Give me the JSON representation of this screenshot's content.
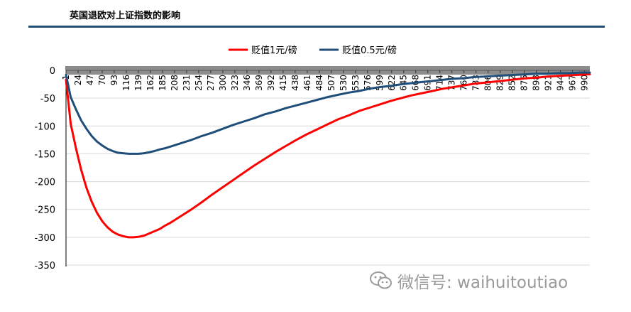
{
  "header": {
    "title": "英国退欧对上证指数的影响",
    "rule_color": "#1f4e79"
  },
  "watermark": {
    "text": "微信号: waihuitoutiao",
    "icon": "wechat-icon"
  },
  "chart_data": {
    "type": "line",
    "title": "",
    "xlabel": "",
    "ylabel": "",
    "ylim": [
      -350,
      0
    ],
    "yticks": [
      0,
      -50,
      -100,
      -150,
      -200,
      -250,
      -300,
      -350
    ],
    "xlim": [
      1,
      1000
    ],
    "xticks": [
      "1",
      "24",
      "47",
      "70",
      "93",
      "116",
      "139",
      "162",
      "185",
      "208",
      "231",
      "254",
      "277",
      "300",
      "323",
      "346",
      "369",
      "392",
      "415",
      "438",
      "461",
      "484",
      "507",
      "530",
      "553",
      "576",
      "599",
      "622",
      "645",
      "668",
      "691",
      "714",
      "737",
      "760",
      "783",
      "806",
      "829",
      "852",
      "875",
      "898",
      "921",
      "944",
      "967",
      "990"
    ],
    "grid": true,
    "legend_position": "top-center",
    "series": [
      {
        "name": "贬值1元/磅",
        "color": "#ff0000",
        "x": [
          1,
          10,
          20,
          30,
          40,
          50,
          60,
          70,
          80,
          90,
          100,
          110,
          120,
          130,
          140,
          150,
          160,
          170,
          180,
          190,
          200,
          220,
          240,
          260,
          280,
          300,
          320,
          340,
          360,
          380,
          400,
          420,
          440,
          460,
          480,
          500,
          520,
          540,
          560,
          580,
          600,
          620,
          640,
          660,
          680,
          700,
          720,
          740,
          760,
          780,
          800,
          820,
          840,
          860,
          880,
          900,
          920,
          940,
          960,
          980,
          1000
        ],
        "values": [
          -17,
          -96,
          -140,
          -179,
          -211,
          -236,
          -256,
          -271,
          -282,
          -290,
          -295,
          -298,
          -300,
          -300,
          -299,
          -297,
          -293,
          -289,
          -285,
          -279,
          -274,
          -262,
          -250,
          -237,
          -223,
          -210,
          -197,
          -184,
          -171,
          -159,
          -147,
          -136,
          -125,
          -115,
          -106,
          -97,
          -88,
          -81,
          -73,
          -67,
          -61,
          -55,
          -50,
          -45,
          -41,
          -37,
          -33,
          -30,
          -27,
          -24,
          -22,
          -20,
          -18,
          -16,
          -14,
          -13,
          -11,
          -10,
          -9,
          -8,
          -7
        ]
      },
      {
        "name": "贬值0.5元/磅",
        "color": "#1f4e79",
        "x": [
          1,
          10,
          20,
          30,
          40,
          50,
          60,
          70,
          80,
          90,
          100,
          110,
          120,
          130,
          140,
          150,
          160,
          170,
          180,
          190,
          200,
          220,
          240,
          260,
          280,
          300,
          320,
          340,
          360,
          380,
          400,
          420,
          440,
          460,
          480,
          500,
          520,
          540,
          560,
          580,
          600,
          620,
          640,
          660,
          680,
          700,
          720,
          740,
          760,
          780,
          800,
          820,
          840,
          860,
          880,
          900,
          920,
          940,
          960,
          980,
          1000
        ],
        "values": [
          -8,
          -48,
          -70,
          -90,
          -105,
          -118,
          -128,
          -135,
          -141,
          -145,
          -148,
          -149,
          -150,
          -150,
          -150,
          -149,
          -147,
          -145,
          -142,
          -140,
          -137,
          -131,
          -125,
          -118,
          -112,
          -105,
          -98,
          -92,
          -86,
          -79,
          -74,
          -68,
          -63,
          -58,
          -53,
          -48,
          -44,
          -40,
          -37,
          -33,
          -30,
          -28,
          -25,
          -23,
          -21,
          -19,
          -17,
          -15,
          -14,
          -12,
          -11,
          -10,
          -9,
          -8,
          -7,
          -6,
          -6,
          -5,
          -5,
          -4,
          -4
        ]
      }
    ]
  }
}
